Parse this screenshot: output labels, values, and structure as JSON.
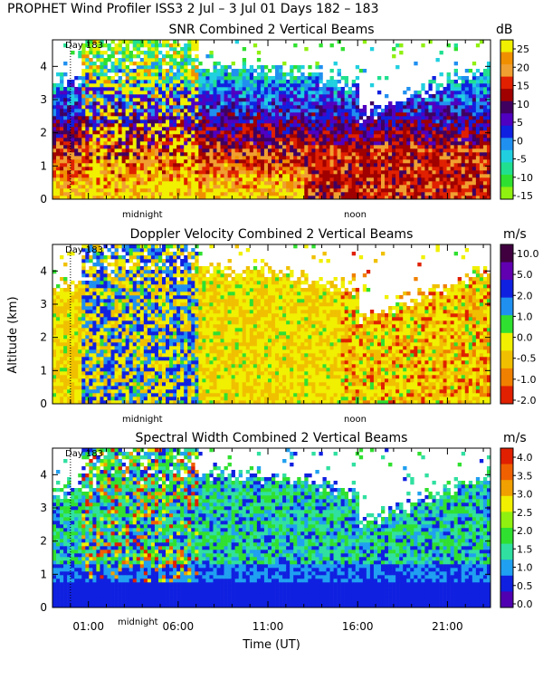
{
  "page_title": "PROPHET Wind Profiler ISS3    2 Jul –  3 Jul 01 Days 182 – 183",
  "y_axis_label": "Altitude (km)",
  "x_axis_label": "Time (UT)",
  "x_tick_labels": [
    "01:00",
    "06:00",
    "11:00",
    "16:00",
    "21:00"
  ],
  "y_tick_labels": [
    "0",
    "1",
    "2",
    "3",
    "4"
  ],
  "panel_annotations": {
    "day_marker": "Day 183",
    "midnight": "midnight",
    "noon": "noon"
  },
  "chart_data": [
    {
      "type": "heatmap",
      "title": "SNR Combined 2 Vertical Beams",
      "colorbar_unit": "dB",
      "colorbar_ticks": [
        "25",
        "20",
        "15",
        "10",
        "5",
        "0",
        "-5",
        "-10",
        "-15"
      ],
      "colorbar_colors": [
        "#f0f000",
        "#f09000",
        "#f0a030",
        "#e02000",
        "#a00000",
        "#400060",
        "#5000c0",
        "#1020e0",
        "#2090f0",
        "#20d0e0",
        "#20e090",
        "#30e030",
        "#90f010"
      ],
      "ylim": [
        0,
        4.8
      ],
      "xlim_hours": [
        -1.0,
        23.4
      ]
    },
    {
      "type": "heatmap",
      "title": "Doppler Velocity Combined 2 Vertical Beams",
      "colorbar_unit": "m/s",
      "colorbar_ticks": [
        "10.0",
        "5.0",
        "2.0",
        "1.0",
        "0.0",
        "-0.5",
        "-1.0",
        "-2.0"
      ],
      "colorbar_colors": [
        "#400040",
        "#6000b0",
        "#1020e0",
        "#2090f0",
        "#30e030",
        "#f0f000",
        "#f0c000",
        "#f08000",
        "#e02000"
      ],
      "ylim": [
        0,
        4.8
      ],
      "xlim_hours": [
        -1.0,
        23.4
      ]
    },
    {
      "type": "heatmap",
      "title": "Spectral Width Combined 2 Vertical Beams",
      "colorbar_unit": "m/s",
      "colorbar_ticks": [
        "4.0",
        "3.5",
        "3.0",
        "2.5",
        "2.0",
        "1.5",
        "1.0",
        "0.5",
        "0.0"
      ],
      "colorbar_colors": [
        "#e02000",
        "#f06000",
        "#f0a000",
        "#f0f000",
        "#90f010",
        "#30e030",
        "#30e0a0",
        "#20a0f0",
        "#1020e0",
        "#5000b0"
      ],
      "ylim": [
        0,
        4.8
      ],
      "xlim_hours": [
        -1.0,
        23.4
      ]
    }
  ]
}
